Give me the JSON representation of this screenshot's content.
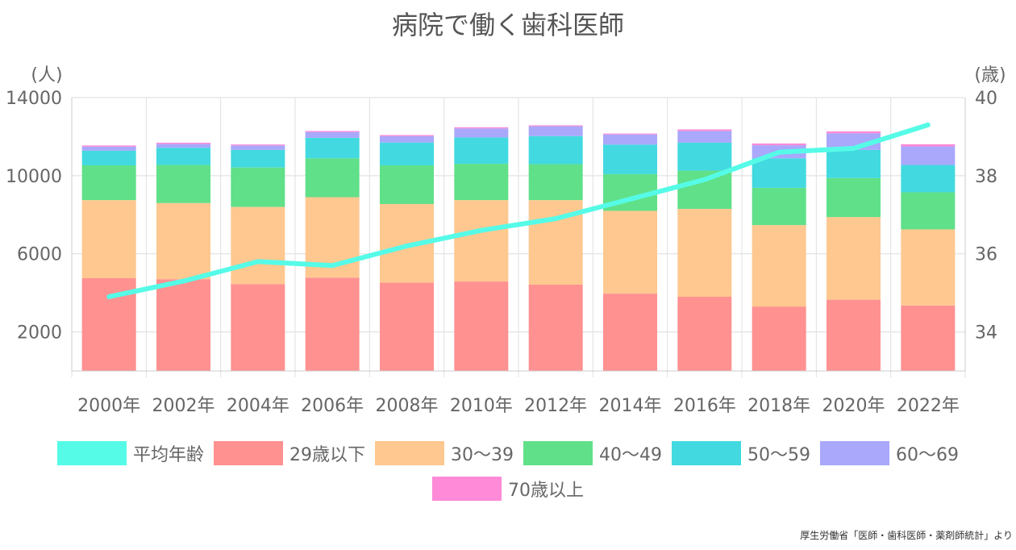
{
  "chart_data": {
    "type": "bar",
    "stacked": true,
    "title": "病院で働く歯科医師",
    "source": "厚生労働省「医師・歯科医師・薬剤師統計」より",
    "categories": [
      "2000年",
      "2002年",
      "2004年",
      "2006年",
      "2008年",
      "2010年",
      "2012年",
      "2014年",
      "2016年",
      "2018年",
      "2020年",
      "2022年"
    ],
    "y_left": {
      "unit_label": "(人)",
      "ticks": [
        "2000",
        "6000",
        "10000",
        "14000"
      ],
      "ylim": [
        0,
        14000
      ]
    },
    "y_right": {
      "unit_label": "(歳)",
      "ticks": [
        "34",
        "36",
        "38",
        "40"
      ],
      "ylim": [
        33,
        40
      ]
    },
    "series": [
      {
        "name": "29歳以下",
        "color": "#ff9191",
        "values": [
          4750,
          4700,
          4450,
          4780,
          4520,
          4580,
          4420,
          3960,
          3800,
          3300,
          3650,
          3350
        ]
      },
      {
        "name": "30〜39",
        "color": "#fec890",
        "values": [
          4000,
          3900,
          3950,
          4120,
          4030,
          4170,
          4330,
          4240,
          4500,
          4170,
          4230,
          3900
        ]
      },
      {
        "name": "40〜49",
        "color": "#60e089",
        "values": [
          1780,
          1950,
          2020,
          1990,
          1980,
          1860,
          1840,
          1880,
          1960,
          1910,
          2000,
          1900
        ]
      },
      {
        "name": "50〜59",
        "color": "#42d9e0",
        "values": [
          750,
          880,
          900,
          1050,
          1170,
          1350,
          1440,
          1510,
          1430,
          1510,
          1440,
          1400
        ]
      },
      {
        "name": "60〜69",
        "color": "#a9a8fb",
        "values": [
          210,
          200,
          230,
          300,
          320,
          460,
          500,
          520,
          600,
          670,
          850,
          950
        ]
      },
      {
        "name": "70歳以上",
        "color": "#ff8ad8",
        "values": [
          60,
          60,
          50,
          50,
          60,
          60,
          50,
          50,
          80,
          90,
          100,
          110
        ]
      }
    ],
    "line_series": {
      "name": "平均年齢",
      "color": "#55fbe7",
      "axis": "right",
      "values": [
        34.9,
        35.3,
        35.8,
        35.7,
        36.2,
        36.6,
        36.9,
        37.4,
        37.9,
        38.6,
        38.7,
        39.3
      ]
    },
    "legend_order": [
      "平均年齢",
      "29歳以下",
      "30〜39",
      "40〜49",
      "50〜59",
      "60〜69",
      "70歳以上"
    ],
    "grid": true,
    "legend_position": "bottom"
  }
}
